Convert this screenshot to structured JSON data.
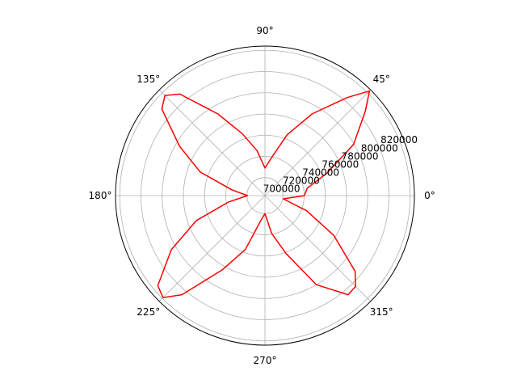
{
  "chart_data": {
    "type": "line",
    "projection": "polar",
    "title": "",
    "grid": true,
    "theta_unit": "degrees",
    "theta_tick_labels": [
      "0°",
      "45°",
      "90°",
      "135°",
      "180°",
      "225°",
      "270°",
      "315°"
    ],
    "r_tick_labels": [
      "700000",
      "720000",
      "740000",
      "760000",
      "780000",
      "800000",
      "820000"
    ],
    "rlim": [
      683000,
      824000
    ],
    "colors": {
      "line": "#ff0000",
      "grid": "#b0b0b0",
      "frame": "#000000",
      "background": "#ffffff"
    },
    "series": [
      {
        "theta_deg": [
          0,
          10,
          20,
          30,
          40,
          45,
          50,
          60,
          70,
          80,
          90,
          100,
          110,
          120,
          130,
          135,
          140,
          150,
          160,
          170,
          180,
          190,
          200,
          210,
          220,
          225,
          230,
          240,
          250,
          260,
          270,
          280,
          290,
          300,
          310,
          315,
          320,
          330,
          340,
          350,
          360
        ],
        "r": [
          720200,
          723500,
          745500,
          779500,
          806500,
          822500,
          803700,
          772000,
          744000,
          719500,
          709000,
          726000,
          745000,
          772000,
          808000,
          816500,
          810000,
          776000,
          748000,
          715000,
          699500,
          718000,
          752000,
          785000,
          815000,
          819000,
          805000,
          764000,
          737000,
          707500,
          700000,
          719000,
          741000,
          780000,
          805000,
          804000,
          794000,
          758000,
          725000,
          700500,
          720200
        ]
      }
    ]
  }
}
